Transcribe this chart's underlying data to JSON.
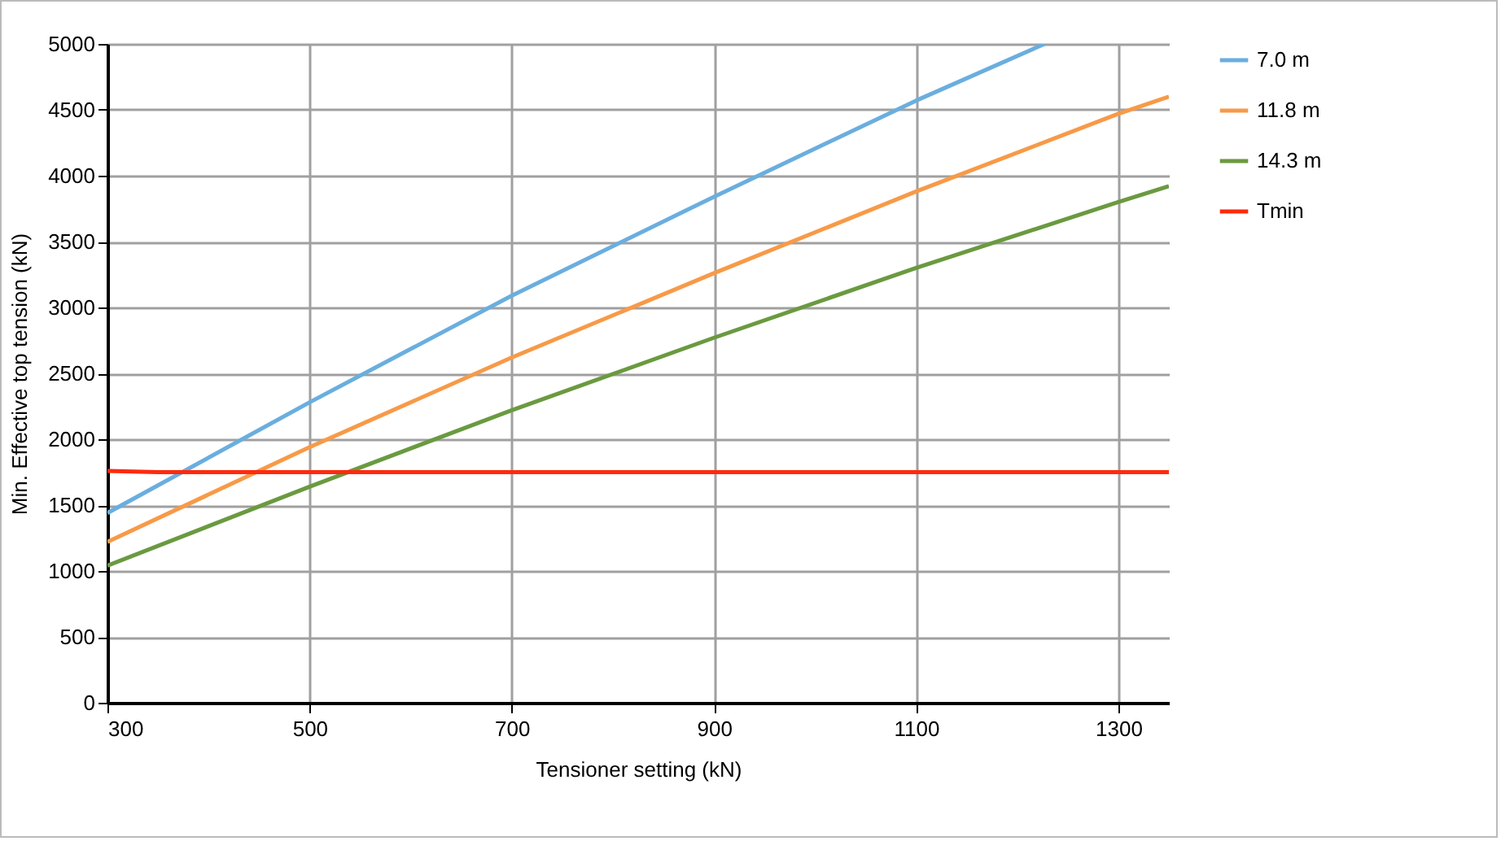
{
  "chart_data": {
    "type": "line",
    "xlabel": "Tensioner setting (kN)",
    "ylabel": "Min. Effective top tension (kN)",
    "xlim": [
      300,
      1350
    ],
    "xticks": [
      300,
      500,
      700,
      900,
      1100,
      1300
    ],
    "ylim": [
      0,
      5000
    ],
    "yticks": [
      0,
      500,
      1000,
      1500,
      2000,
      2500,
      3000,
      3500,
      4000,
      4500,
      5000
    ],
    "grid": true,
    "legend": "right",
    "marker": "none",
    "line_style": "solid",
    "series": [
      {
        "name": "7.0 m",
        "color": "#6aaedf",
        "x": [
          300,
          500,
          700,
          900,
          1100,
          1227
        ],
        "values": [
          1440,
          2280,
          3090,
          3840,
          4570,
          5000
        ]
      },
      {
        "name": "11.8 m",
        "color": "#f79a48",
        "x": [
          300,
          500,
          700,
          900,
          1100,
          1300,
          1350
        ],
        "values": [
          1220,
          1940,
          2620,
          3260,
          3880,
          4470,
          4600
        ]
      },
      {
        "name": "14.3 m",
        "color": "#6a9a40",
        "x": [
          300,
          500,
          700,
          900,
          1100,
          1300,
          1350
        ],
        "values": [
          1040,
          1640,
          2220,
          2770,
          3300,
          3800,
          3920
        ]
      },
      {
        "name": "Tmin",
        "color": "#ff2a0e",
        "x": [
          300,
          350,
          500,
          700,
          900,
          1100,
          1300,
          1350
        ],
        "values": [
          1760,
          1750,
          1750,
          1750,
          1750,
          1750,
          1750,
          1750
        ]
      }
    ]
  }
}
